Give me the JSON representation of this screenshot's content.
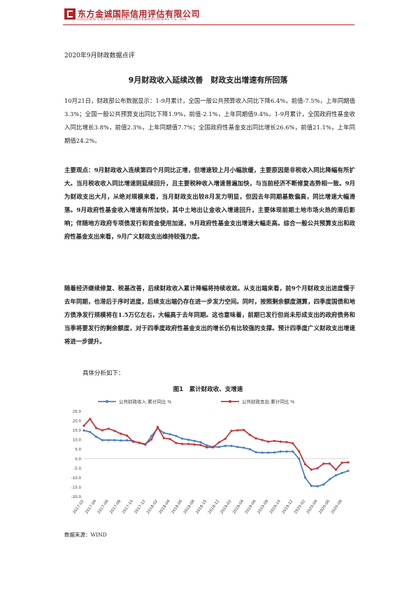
{
  "header": {
    "company_cn": "东方金诚国际信用评估有限公司",
    "company_en": "GOLDEN CREDIT RATING INTERNATIONAL Co.,Ltd."
  },
  "doc_tag": "2020年9月财政数据点评",
  "title": "9月财政收入延续改善　财政支出增速有所回落",
  "paragraphs": {
    "intro": "10月21日，财政部公布数据显示：1-9月累计，全国一般公共预算收入同比下降6.4%，前值-7.5%，上年同期值3.3%；全国一般公共预算支出同比下降1.9%，前值-2.1%，上年同期值9.4%。1-9月累计，全国政府性基金收入同比增长3.8%，前值2.3%，上年同期值7.7%；全国政府性基金支出同比增长26.6%，前值21.1%，上年同期值24.2%。",
    "main": "主要观点：9月财政收入连续第四个月同比正增，但增速较上月小幅放缓，主要原因是非税收入同比降幅有所扩大。当月税收收入同比增速则延续回升，且主要税种收入增速普遍加快，与当前经济不断修复态势相一致。9月为财政支出大月，从绝对规模来看，当月财政支出较8月发力明显，但因去年同期基数偏高，同比增速大幅滑落。9月政府性基金收入增速有所加快，其中土地出让金收入增速回升，主要体现前期土地市场火热的滞后影响；伴随地方政府专项债发行和资金使用加速，9月政府性基金支出增速大幅走高。综合一般公共预算支出和政府性基金支出来看，9月广义财政支出维持较强力度。",
    "outlook": "随着经济继续修复、税基改善，后续财政收入累计降幅将持续收敛。从支出端来看，前9个月财政支出进度慢于去年同期，也滞后于序时进度，后续支出端仍存在进一步发力空间。同时，按照剩余额度测算，四季度国债和地方债净发行规模将在1.5万亿左右，大幅高于去年同期。这也意味着，前期已发行但尚未形成支出的政府债务和当季将要发行的剩余额度，对于四季度政府性基金支出的增长仍有比较强的支撑。预计四季度广义财政支出增速将进一步提升。"
  },
  "analysis_label": "具体分析如下：",
  "figure_title": "图1　累计财政收、支增速",
  "source": "数据来源：WIND",
  "chart_data": {
    "type": "line",
    "title": "图1　累计财政收、支增速",
    "xlabel": "",
    "ylabel": "",
    "ylim": [
      -20,
      25
    ],
    "yticks": [
      "25.0",
      "20.0",
      "15.0",
      "10.0",
      "5.0",
      "0.0",
      "-5.0",
      "-10.0",
      "-15.0",
      "-20.0"
    ],
    "x": [
      "2017-02",
      "2017-03",
      "2017-04",
      "2017-05",
      "2017-06",
      "2017-07",
      "2017-08",
      "2017-09",
      "2017-10",
      "2017-11",
      "2017-12",
      "2018-01",
      "2018-02",
      "2018-03",
      "2018-04",
      "2018-05",
      "2018-06",
      "2018-07",
      "2018-08",
      "2018-09",
      "2018-10",
      "2018-11",
      "2018-12",
      "2019-01",
      "2019-02",
      "2019-03",
      "2019-04",
      "2019-05",
      "2019-06",
      "2019-07",
      "2019-08",
      "2019-09",
      "2019-10",
      "2019-11",
      "2019-12",
      "2020-01",
      "2020-02",
      "2020-03",
      "2020-04",
      "2020-05",
      "2020-06",
      "2020-07",
      "2020-08",
      "2020-09"
    ],
    "x_tick_labels": [
      "2017-02",
      "2017-04",
      "2017-06",
      "2017-08",
      "2017-10",
      "2017-12",
      "2018-02",
      "2018-04",
      "2018-06",
      "2018-08",
      "2018-10",
      "2018-12",
      "2019-02",
      "2019-04",
      "2019-06",
      "2019-08",
      "2019-10",
      "2019-12",
      "2020-02",
      "2020-04",
      "2020-06",
      "2020-08"
    ],
    "grid": false,
    "legend_position": "top",
    "series": [
      {
        "name": "公共财政收入:累计同比 %",
        "color": "#4a7ebb",
        "values": [
          14.9,
          14.1,
          11.6,
          9.8,
          9.8,
          9.8,
          9.6,
          9.7,
          9.3,
          8.3,
          7.4,
          12.0,
          16.0,
          13.6,
          12.9,
          12.0,
          10.6,
          10.0,
          9.4,
          8.7,
          7.0,
          6.3,
          6.2,
          6.8,
          6.8,
          6.2,
          5.8,
          5.0,
          3.4,
          3.2,
          3.2,
          3.3,
          3.8,
          3.8,
          3.8,
          0.0,
          -9.9,
          -14.3,
          -14.5,
          -13.6,
          -10.8,
          -8.7,
          -7.5,
          -6.4
        ]
      },
      {
        "name": "公共财政支出:累计同比 %",
        "color": "#c0383c",
        "values": [
          17.4,
          21.0,
          16.2,
          15.0,
          15.8,
          14.7,
          13.2,
          12.2,
          9.0,
          8.5,
          7.7,
          10.2,
          16.7,
          10.9,
          10.4,
          8.3,
          7.8,
          7.8,
          7.5,
          7.2,
          6.0,
          6.0,
          8.7,
          10.5,
          14.7,
          15.0,
          15.2,
          12.6,
          10.7,
          9.9,
          9.0,
          9.4,
          9.0,
          8.8,
          8.1,
          3.9,
          -2.9,
          -5.7,
          -5.0,
          -2.6,
          -2.6,
          -5.8,
          -2.1,
          -1.9
        ]
      }
    ]
  }
}
